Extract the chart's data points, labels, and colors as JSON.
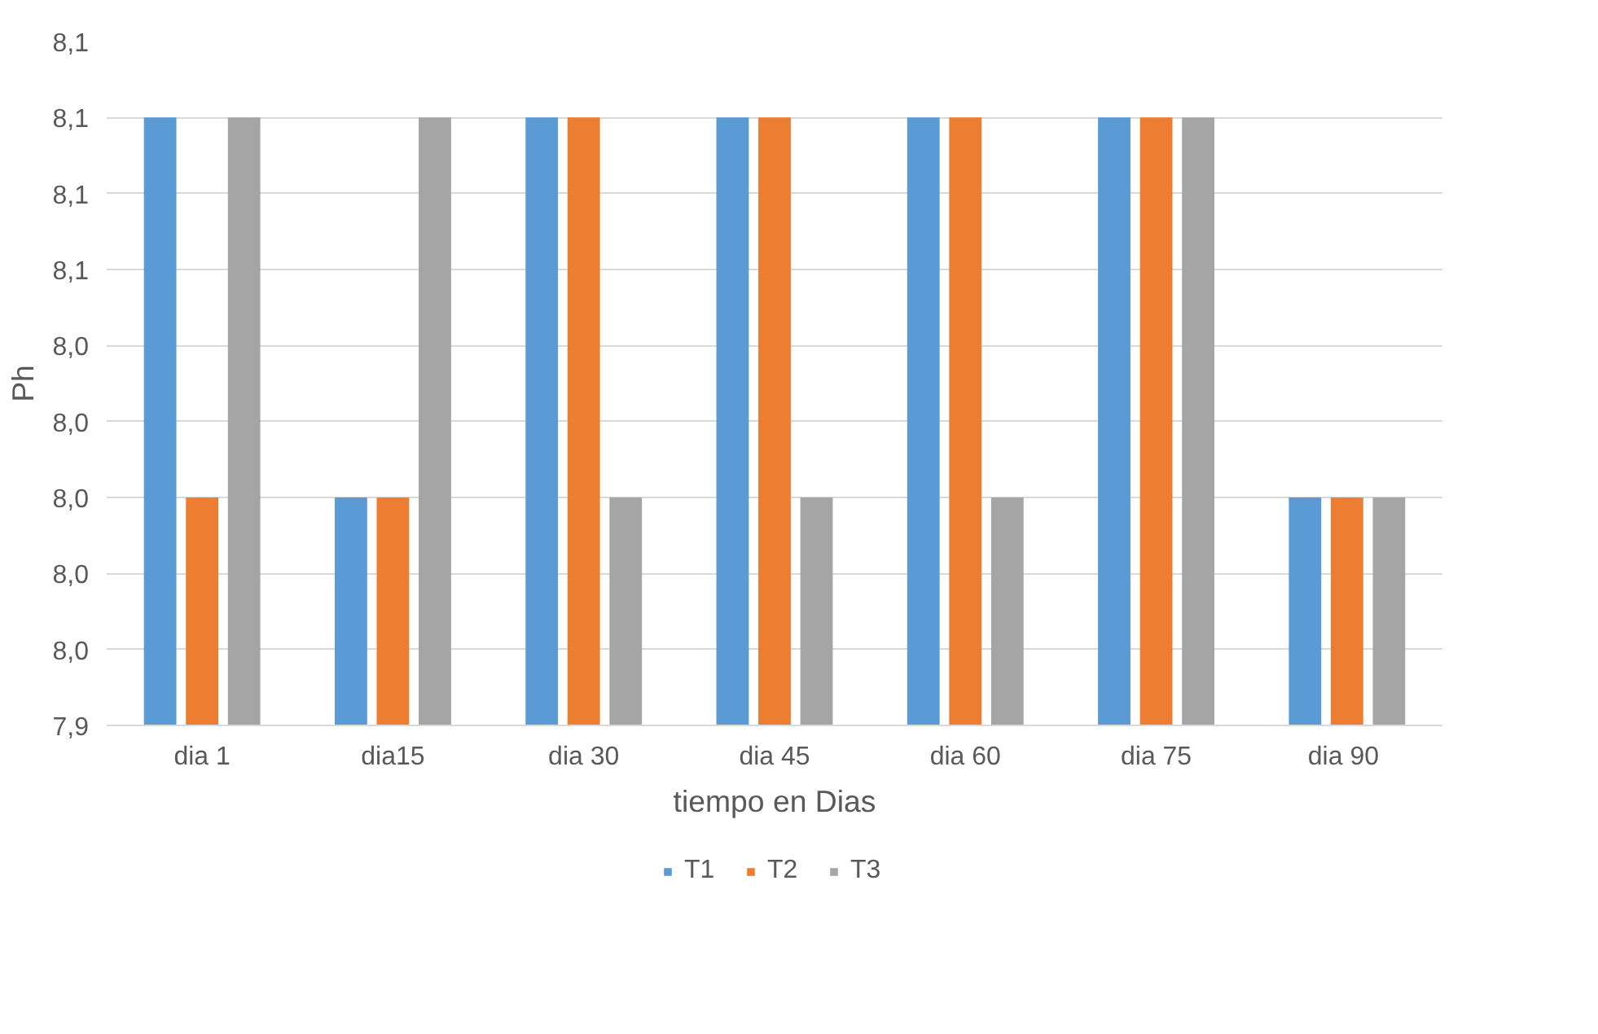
{
  "chart_data": {
    "type": "bar",
    "xlabel": "tiempo en Dias",
    "ylabel": "Ph",
    "categories": [
      "dia 1",
      "dia15",
      "dia 30",
      "dia 45",
      "dia 60",
      "dia 75",
      "dia  90"
    ],
    "series": [
      {
        "name": "T1",
        "color": "#5b9bd5",
        "values": [
          8.1,
          8.0,
          8.1,
          8.1,
          8.1,
          8.1,
          8.0
        ]
      },
      {
        "name": "T2",
        "color": "#ed7d31",
        "values": [
          8.0,
          8.0,
          8.1,
          8.1,
          8.1,
          8.1,
          8.0
        ]
      },
      {
        "name": "T3",
        "color": "#a5a5a5",
        "values": [
          8.1,
          8.1,
          8.0,
          8.0,
          8.0,
          8.1,
          8.0
        ]
      }
    ],
    "ylim": [
      7.94,
      8.12
    ],
    "yticks": [
      {
        "value": 7.94,
        "label": "7,9"
      },
      {
        "value": 7.96,
        "label": "8,0"
      },
      {
        "value": 7.98,
        "label": "8,0"
      },
      {
        "value": 8.0,
        "label": "8,0"
      },
      {
        "value": 8.02,
        "label": "8,0"
      },
      {
        "value": 8.04,
        "label": "8,0"
      },
      {
        "value": 8.06,
        "label": "8,1"
      },
      {
        "value": 8.08,
        "label": "8,1"
      },
      {
        "value": 8.1,
        "label": "8,1"
      },
      {
        "value": 8.12,
        "label": "8,1"
      }
    ],
    "grid": "y",
    "legend": "bottom"
  }
}
